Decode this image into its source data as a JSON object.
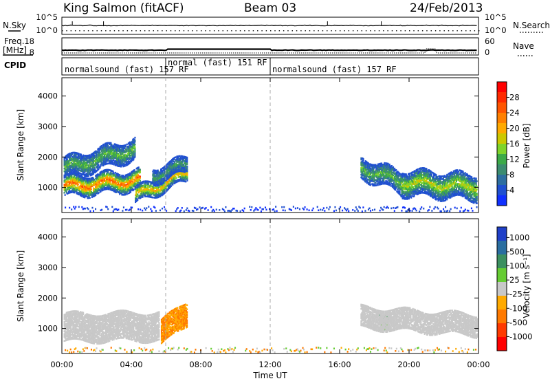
{
  "header": {
    "station": "King Salmon (fitACF)",
    "beam": "Beam 03",
    "date": "24/Feb/2013"
  },
  "noise_panel": {
    "left_label": "N.Sky",
    "right_label": "N.Search",
    "left_ticks": [
      "10^5",
      "10^0"
    ],
    "right_ticks": [
      "10^5",
      "10^0"
    ]
  },
  "freq_panel": {
    "left_label_1": "Freq.",
    "left_label_2": "[MHz]",
    "right_label": "Nave",
    "left_ticks": [
      "18",
      "8"
    ],
    "right_ticks": [
      "60",
      "0"
    ]
  },
  "cpid_panel": {
    "label": "CPID",
    "segments": [
      {
        "name": "normalsound (fast) 157 RF",
        "start_h": 0,
        "end_h": 6
      },
      {
        "name": "normal (fast) 151 RF",
        "start_h": 6,
        "end_h": 12
      },
      {
        "name": "normalsound (fast) 157 RF",
        "start_h": 12,
        "end_h": 24
      }
    ]
  },
  "power_colorbar": {
    "label": "Power [dB]",
    "ticks": [
      "28",
      "24",
      "20",
      "16",
      "12",
      "8",
      "4"
    ],
    "colors": [
      "#ff0000",
      "#ff2a00",
      "#ff5500",
      "#ff8000",
      "#ffaa00",
      "#ccc800",
      "#7fd42a",
      "#3caa48",
      "#3c8c70",
      "#2e6ea0",
      "#2050d0",
      "#1030ff"
    ]
  },
  "velocity_colorbar": {
    "label": "Velocity [m s⁻¹]",
    "ticks": [
      "1000",
      "500",
      "100",
      "25",
      "-25",
      "-100",
      "-500",
      "-1000"
    ],
    "colors": [
      "#2040c8",
      "#2a6ea0",
      "#3c9060",
      "#66cc33",
      "#c8c8c8",
      "#ffaa00",
      "#ff7a00",
      "#ff3a00",
      "#ff0000"
    ]
  },
  "chart_data": {
    "type": "heatmap",
    "xlabel": "Time UT",
    "ylabel": "Slant Range [km]",
    "x_tick_labels": [
      "00:00",
      "04:00",
      "08:00",
      "12:00",
      "16:00",
      "20:00",
      "00:00"
    ],
    "x_range_hours": [
      0,
      24
    ],
    "y_tick_labels": [
      "1000",
      "2000",
      "3000",
      "4000"
    ],
    "y_range_km": [
      180,
      4600
    ],
    "power_blobs": [
      {
        "t": [
          0.1,
          4.5
        ],
        "r_center": [
          1050,
          1280
        ],
        "r_width": 320,
        "peak_db": 24
      },
      {
        "t": [
          0.1,
          4.2
        ],
        "r_center": [
          1650,
          2300
        ],
        "r_width": 350,
        "peak_db": 12
      },
      {
        "t": [
          4.2,
          7.2
        ],
        "r_center": [
          750,
          1500
        ],
        "r_width": 250,
        "peak_db": 20
      },
      {
        "t": [
          5.2,
          7.2
        ],
        "r_center": [
          1400,
          1800
        ],
        "r_width": 250,
        "peak_db": 10
      },
      {
        "t": [
          17.2,
          19.5
        ],
        "r_center": [
          1700,
          1200
        ],
        "r_width": 350,
        "peak_db": 12
      },
      {
        "t": [
          19.5,
          23.9
        ],
        "r_center": [
          1200,
          1050
        ],
        "r_width": 420,
        "peak_db": 16
      }
    ],
    "velocity_regions": [
      {
        "t": [
          0.1,
          5.6
        ],
        "r_center": [
          1050,
          1100
        ],
        "r_width": 450,
        "velocity": 0
      },
      {
        "t": [
          5.7,
          7.2
        ],
        "r_center": [
          900,
          1550
        ],
        "r_width": 400,
        "velocity": -100
      },
      {
        "t": [
          18.3,
          18.8
        ],
        "r_center": [
          1300,
          1300
        ],
        "r_width": 250,
        "velocity": 100
      },
      {
        "t": [
          17.2,
          23.9
        ],
        "r_center": [
          1400,
          1150
        ],
        "r_width": 350,
        "velocity": 0
      }
    ]
  }
}
